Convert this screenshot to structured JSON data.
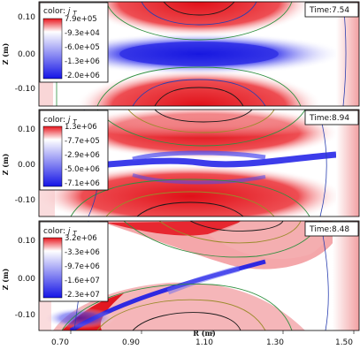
{
  "chart_data": [
    {
      "type": "heatmap",
      "time_label": "Time:7.54",
      "colorbar_title": "color:",
      "colorbar_symbol": "j",
      "colorbar_subscript": "T",
      "colorbar_ticks": [
        "7.9e+05",
        "-9.3e+04",
        "-6.0e+05",
        "-1.3e+06",
        "-2.0e+06"
      ],
      "ylabel": "Z (m)",
      "yticks": [
        "0.10",
        "0.00",
        "-0.10"
      ],
      "xlim": [
        0.65,
        1.55
      ],
      "ylim": [
        -0.15,
        0.15
      ]
    },
    {
      "type": "heatmap",
      "time_label": "Time:8.94",
      "colorbar_title": "color:",
      "colorbar_symbol": "j",
      "colorbar_subscript": "T",
      "colorbar_ticks": [
        "1.3e+06",
        "-7.7e+05",
        "-2.9e+06",
        "-5.0e+06",
        "-7.1e+06"
      ],
      "ylabel": "Z (m)",
      "yticks": [
        "0.10",
        "0.00",
        "-0.10"
      ],
      "xlim": [
        0.65,
        1.55
      ],
      "ylim": [
        -0.15,
        0.15
      ]
    },
    {
      "type": "heatmap",
      "time_label": "Time:8.48",
      "colorbar_title": "color:",
      "colorbar_symbol": "j",
      "colorbar_subscript": "T",
      "colorbar_ticks": [
        "3.2e+06",
        "-3.3e+06",
        "-9.7e+06",
        "-1.6e+07",
        "-2.3e+07"
      ],
      "ylabel": "Z (m)",
      "yticks": [
        "0.10",
        "0.00",
        "-0.10"
      ],
      "xlabel": "R (m)",
      "xticks": [
        "0.70",
        "0.90",
        "1.10",
        "1.30",
        "1.50"
      ],
      "xlim": [
        0.65,
        1.55
      ],
      "ylim": [
        -0.15,
        0.15
      ]
    }
  ],
  "colors": {
    "positive": "#e8141c",
    "negative": "#1a1ae6",
    "neutral": "#ffffff",
    "contour_black": "#1a1a1a",
    "contour_blue": "#2a3fb0",
    "contour_green": "#2f8f3f",
    "contour_olive": "#9a8a2a"
  }
}
